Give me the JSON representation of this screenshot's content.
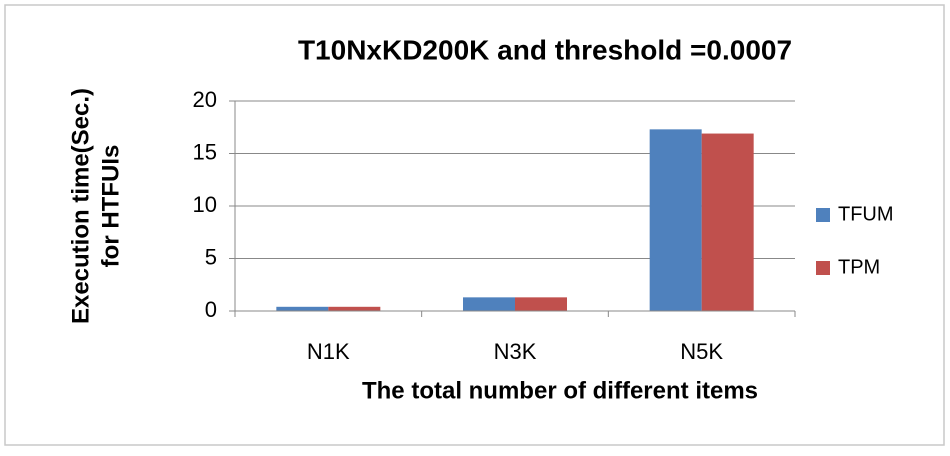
{
  "chart_data": {
    "type": "bar",
    "title": "T10NxKD200K and threshold =0.0007",
    "xlabel": "The total number of different items",
    "ylabel": [
      "Execution time(Sec.)",
      "for HTFUIs"
    ],
    "categories": [
      "N1K",
      "N3K",
      "N5K"
    ],
    "series": [
      {
        "name": "TFUM",
        "color": "#4f81bd",
        "values": [
          0.4,
          1.3,
          17.3
        ]
      },
      {
        "name": "TPM",
        "color": "#c0504d",
        "values": [
          0.4,
          1.3,
          16.9
        ]
      }
    ],
    "ylim": [
      0,
      20
    ],
    "yticks": [
      0,
      5,
      10,
      15,
      20
    ],
    "grid": true,
    "legend": "right"
  }
}
